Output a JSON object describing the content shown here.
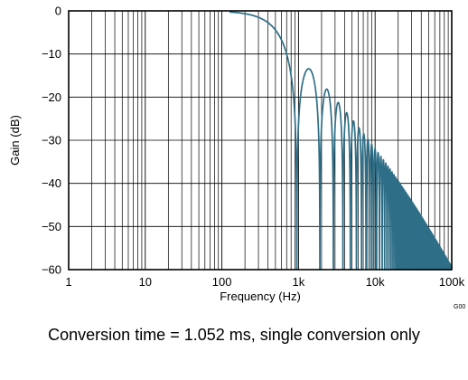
{
  "chart_data": {
    "type": "line",
    "title": "",
    "xlabel": "Frequency (Hz)",
    "ylabel": "Gain (dB)",
    "x_scale": "log",
    "xlim": [
      1,
      100000
    ],
    "ylim": [
      -60,
      0
    ],
    "x_ticks": [
      {
        "value": 1,
        "label": "1"
      },
      {
        "value": 10,
        "label": "10"
      },
      {
        "value": 100,
        "label": "100"
      },
      {
        "value": 1000,
        "label": "1k"
      },
      {
        "value": 10000,
        "label": "10k"
      },
      {
        "value": 100000,
        "label": "100k"
      }
    ],
    "y_ticks": [
      {
        "value": 0,
        "label": "0"
      },
      {
        "value": -10,
        "label": "−10"
      },
      {
        "value": -20,
        "label": "−20"
      },
      {
        "value": -30,
        "label": "−30"
      },
      {
        "value": -40,
        "label": "−40"
      },
      {
        "value": -50,
        "label": "−50"
      },
      {
        "value": -60,
        "label": "−60"
      }
    ],
    "grid": true,
    "line_color": "#2e6e86",
    "response_model": "sinc",
    "conversion_time_s": 0.001052,
    "series": [
      {
        "x": [
          150,
          200,
          300,
          400,
          500,
          600,
          700,
          800,
          850,
          900,
          951,
          1000,
          1100,
          1200,
          1300,
          1426,
          1600,
          1802,
          1900,
          2200,
          2377,
          3000,
          5000,
          10000,
          20000,
          50000,
          100000
        ],
        "y": [
          -0.3,
          -0.6,
          -1.3,
          -2.4,
          -3.9,
          -6.0,
          -8.8,
          -13.2,
          -16.8,
          -22.5,
          -60,
          -26,
          -17.5,
          -14.5,
          -13.5,
          -13.3,
          -15.0,
          -60,
          -24,
          -18.0,
          -17.8,
          -20,
          -25,
          -31,
          -37,
          -44,
          -50
        ]
      }
    ],
    "figure_id": "G00",
    "caption": "Conversion time = 1.052 ms, single conversion only"
  }
}
